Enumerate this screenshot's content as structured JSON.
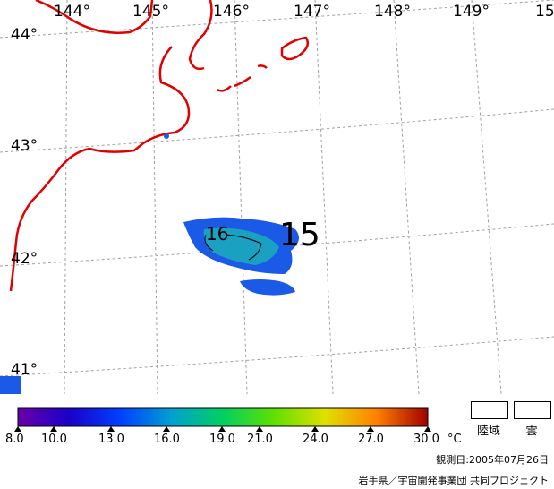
{
  "map": {
    "lon_labels": [
      "144°",
      "145°",
      "146°",
      "147°",
      "148°",
      "149°",
      "15"
    ],
    "lat_labels": [
      "44°",
      "43°",
      "42°",
      "41°"
    ],
    "contour_labels": [
      "16",
      "15"
    ]
  },
  "colorbar": {
    "ticks": [
      "8.0",
      "10.0",
      "13.0",
      "16.0",
      "19.0",
      "21.0",
      "24.0",
      "27.0",
      "30.0"
    ],
    "unit": "°C",
    "stops": [
      "#6a00a8",
      "#1a00c8",
      "#0040ff",
      "#00a0d0",
      "#00d060",
      "#60e000",
      "#e0e000",
      "#ff8000",
      "#a00000"
    ]
  },
  "legend": {
    "land_label": "陸域",
    "cloud_label": "雲"
  },
  "observation_date": "観測日:2005年07月26日",
  "credit": "岩手県／宇宙開発事業団 共同プロジェクト",
  "colors": {
    "coastline": "#e00000",
    "grid": "#a0a0a0"
  }
}
